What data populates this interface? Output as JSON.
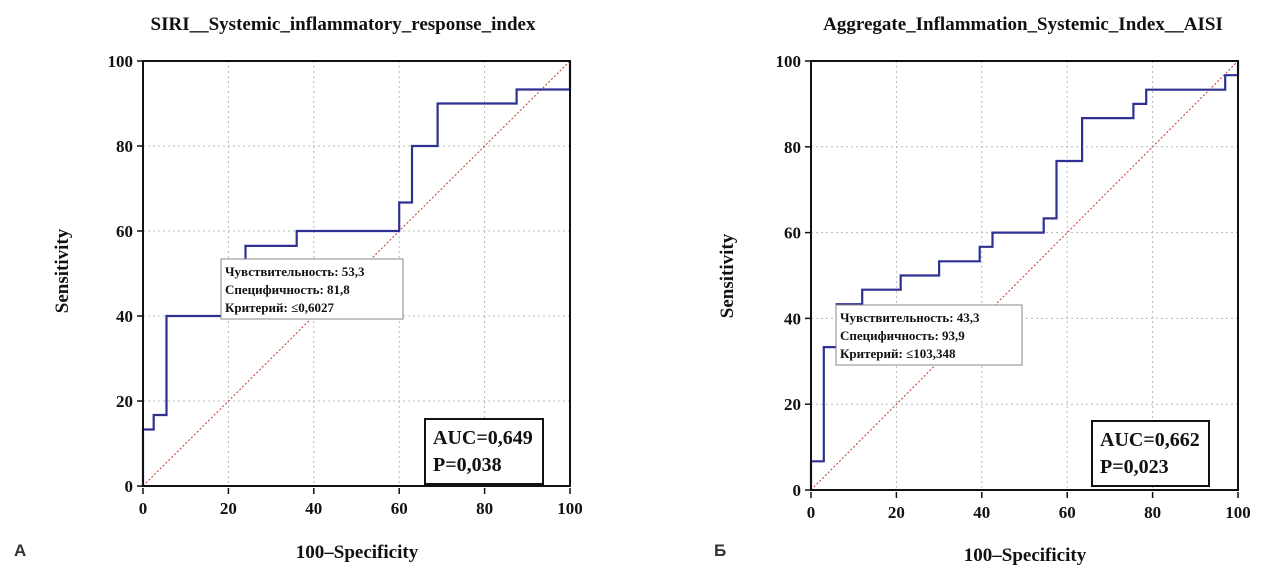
{
  "colors": {
    "curve": "#2e3192",
    "diagonal": "#c0392b",
    "axis": "#111111",
    "grid": "#b8b8b8"
  },
  "chart_data": [
    {
      "type": "line",
      "panel_label": "А",
      "title": "SIRI__Systemic_inflammatory_response_index",
      "xlabel": "100–Specificity",
      "ylabel": "Sensitivity",
      "xlim": [
        0,
        100
      ],
      "ylim": [
        0,
        100
      ],
      "xticks": [
        "0",
        "20",
        "40",
        "60",
        "80",
        "100"
      ],
      "yticks": [
        "0",
        "20",
        "40",
        "60",
        "80",
        "100"
      ],
      "grid": true,
      "roc": {
        "x": [
          0,
          0,
          2.5,
          2.5,
          5.5,
          5.5,
          24,
          24,
          36,
          36,
          60,
          60,
          63,
          63,
          69,
          69,
          87.5,
          87.5,
          100,
          100
        ],
        "y": [
          0,
          13.3,
          13.3,
          16.7,
          16.7,
          40,
          40,
          56.5,
          56.5,
          60,
          60,
          66.7,
          66.7,
          80,
          80,
          90,
          90,
          93.3,
          93.3,
          100
        ]
      },
      "criterion_lines": [
        "Чувствительность: 53,3",
        "Специфичность: 81,8",
        "Критерий: ≤0,6027"
      ],
      "stats_lines": [
        "AUC=0,649",
        "P=0,038"
      ]
    },
    {
      "type": "line",
      "panel_label": "Б",
      "title": "Aggregate_Inflammation_Systemic_Index__AISI",
      "xlabel": "100–Specificity",
      "ylabel": "Sensitivity",
      "xlim": [
        0,
        100
      ],
      "ylim": [
        0,
        100
      ],
      "xticks": [
        "0",
        "20",
        "40",
        "60",
        "80",
        "100"
      ],
      "yticks": [
        "0",
        "20",
        "40",
        "60",
        "80",
        "100"
      ],
      "grid": true,
      "roc": {
        "x": [
          0,
          0,
          3,
          3,
          6,
          6,
          12,
          12,
          21,
          21,
          30,
          30,
          39.5,
          39.5,
          42.5,
          42.5,
          54.5,
          54.5,
          57.5,
          57.5,
          63.5,
          63.5,
          75.5,
          75.5,
          78.5,
          78.5,
          97,
          97,
          100,
          100
        ],
        "y": [
          0,
          6.7,
          6.7,
          33.3,
          33.3,
          43.3,
          43.3,
          46.7,
          46.7,
          50,
          50,
          53.3,
          53.3,
          56.7,
          56.7,
          60,
          60,
          63.3,
          63.3,
          76.7,
          76.7,
          86.7,
          86.7,
          90,
          90,
          93.3,
          93.3,
          96.7,
          96.7,
          100
        ]
      },
      "criterion_lines": [
        "Чувствительность: 43,3",
        "Специфичность: 93,9",
        "Критерий: ≤103,348"
      ],
      "stats_lines": [
        "AUC=0,662",
        "P=0,023"
      ]
    }
  ]
}
